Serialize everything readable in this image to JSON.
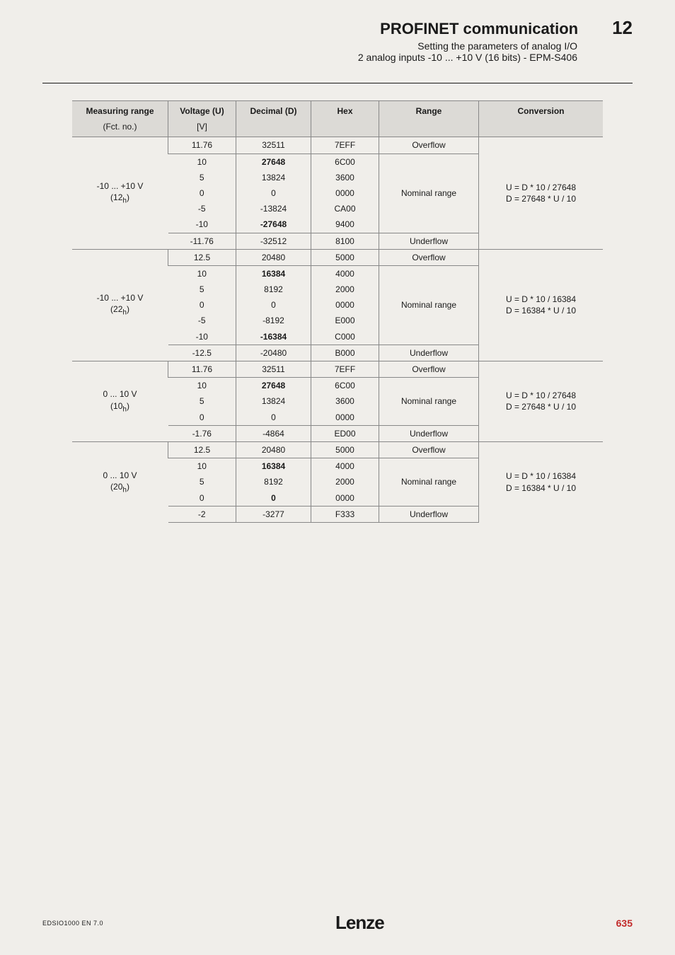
{
  "header": {
    "title": "PROFINET communication",
    "chapter": "12",
    "subtitle1": "Setting the parameters of analog I/O",
    "subtitle2": "2 analog inputs -10 ... +10 V (16 bits) - EPM-S406"
  },
  "table": {
    "head": {
      "measuring_range": "Measuring range",
      "fct_no": "(Fct. no.)",
      "voltage": "Voltage (U)",
      "voltage_unit": "[V]",
      "decimal": "Decimal (D)",
      "hex": "Hex",
      "range": "Range",
      "conversion": "Conversion"
    },
    "groups": [
      {
        "measuring_range": "-10 ... +10 V",
        "fct_no": "(12",
        "fct_no_sub": "h",
        "fct_no_close": ")",
        "conversion_l1": "U = D * 10 / 27648",
        "conversion_l2": "D = 27648 * U / 10",
        "rows": [
          {
            "v": "11.76",
            "d": "32511",
            "h": "7EFF",
            "r": "Overflow",
            "sep": "top"
          },
          {
            "v": "10",
            "d": "27648",
            "h": "6C00",
            "bold_d": true,
            "r_span_start": true,
            "r_label": "Nominal range",
            "r_span": 5,
            "sep": "top"
          },
          {
            "v": "5",
            "d": "13824",
            "h": "3600"
          },
          {
            "v": "0",
            "d": "0",
            "h": "0000"
          },
          {
            "v": "-5",
            "d": "-13824",
            "h": "CA00"
          },
          {
            "v": "-10",
            "d": "-27648",
            "h": "9400",
            "bold_d": true
          },
          {
            "v": "-11.76",
            "d": "-32512",
            "h": "8100",
            "r": "Underflow",
            "sep": "top"
          }
        ]
      },
      {
        "measuring_range": "-10 ... +10 V",
        "fct_no": "(22",
        "fct_no_sub": "h",
        "fct_no_close": ")",
        "conversion_l1": "U = D * 10 / 16384",
        "conversion_l2": "D = 16384 * U / 10",
        "rows": [
          {
            "v": "12.5",
            "d": "20480",
            "h": "5000",
            "r": "Overflow",
            "sep": "top"
          },
          {
            "v": "10",
            "d": "16384",
            "h": "4000",
            "bold_d": true,
            "r_span_start": true,
            "r_label": "Nominal range",
            "r_span": 5,
            "sep": "top"
          },
          {
            "v": "5",
            "d": "8192",
            "h": "2000"
          },
          {
            "v": "0",
            "d": "0",
            "h": "0000"
          },
          {
            "v": "-5",
            "d": "-8192",
            "h": "E000"
          },
          {
            "v": "-10",
            "d": "-16384",
            "h": "C000",
            "bold_d": true
          },
          {
            "v": "-12.5",
            "d": "-20480",
            "h": "B000",
            "r": "Underflow",
            "sep": "top"
          }
        ]
      },
      {
        "measuring_range": "0 ... 10 V",
        "fct_no": "(10",
        "fct_no_sub": "h",
        "fct_no_close": ")",
        "conversion_l1": "U = D * 10 / 27648",
        "conversion_l2": "D = 27648 * U / 10",
        "rows": [
          {
            "v": "11.76",
            "d": "32511",
            "h": "7EFF",
            "r": "Overflow",
            "sep": "top"
          },
          {
            "v": "10",
            "d": "27648",
            "h": "6C00",
            "bold_d": true,
            "r_span_start": true,
            "r_label": "Nominal range",
            "r_span": 3,
            "sep": "top"
          },
          {
            "v": "5",
            "d": "13824",
            "h": "3600"
          },
          {
            "v": "0",
            "d": "0",
            "h": "0000"
          },
          {
            "v": "-1.76",
            "d": "-4864",
            "h": "ED00",
            "r": "Underflow",
            "sep": "top"
          }
        ]
      },
      {
        "measuring_range": "0 ... 10 V",
        "fct_no": "(20",
        "fct_no_sub": "h",
        "fct_no_close": ")",
        "conversion_l1": "U = D * 10 / 16384",
        "conversion_l2": "D = 16384 * U / 10",
        "rows": [
          {
            "v": "12.5",
            "d": "20480",
            "h": "5000",
            "r": "Overflow",
            "sep": "top"
          },
          {
            "v": "10",
            "d": "16384",
            "h": "4000",
            "bold_d": true,
            "r_span_start": true,
            "r_label": "Nominal range",
            "r_span": 3,
            "sep": "top"
          },
          {
            "v": "5",
            "d": "8192",
            "h": "2000"
          },
          {
            "v": "0",
            "d": "0",
            "h": "0000",
            "bold_d": true
          },
          {
            "v": "-2",
            "d": "-3277",
            "h": "F333",
            "r": "Underflow",
            "sep": "both"
          }
        ]
      }
    ]
  },
  "footer": {
    "doc_id": "EDSIO1000 EN 7.0",
    "logo": "Lenze",
    "page": "635"
  }
}
